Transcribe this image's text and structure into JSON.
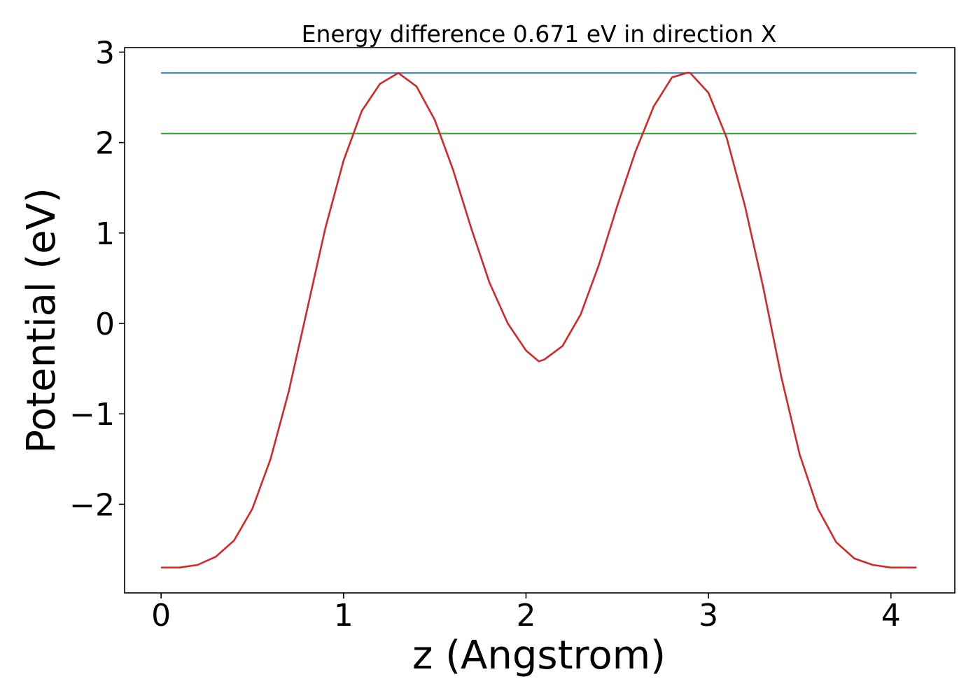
{
  "chart_data": {
    "type": "line",
    "title": "Energy difference 0.671 eV in direction X",
    "xlabel": "z (Angstrom)",
    "ylabel": "Potential (eV)",
    "xlim": [
      -0.2,
      4.35
    ],
    "ylim": [
      -2.98,
      3.05
    ],
    "x_ticks": [
      0,
      1,
      2,
      3,
      4
    ],
    "x_tick_labels": [
      "0",
      "1",
      "2",
      "3",
      "4"
    ],
    "y_ticks": [
      -2,
      -1,
      0,
      1,
      2,
      3
    ],
    "y_tick_labels": [
      "−2",
      "−1",
      "0",
      "1",
      "2",
      "3"
    ],
    "grid": false,
    "legend": "none",
    "series": [
      {
        "color": "#1f77b4",
        "x": [
          0,
          4.14
        ],
        "y": [
          2.77,
          2.77
        ]
      },
      {
        "color": "#2ca02c",
        "x": [
          0,
          4.14
        ],
        "y": [
          2.1,
          2.1
        ]
      },
      {
        "color": "#d62728",
        "x": [
          0.0,
          0.1,
          0.2,
          0.3,
          0.4,
          0.5,
          0.6,
          0.7,
          0.8,
          0.9,
          1.0,
          1.1,
          1.2,
          1.3,
          1.4,
          1.5,
          1.6,
          1.7,
          1.8,
          1.9,
          2.0,
          2.07,
          2.1,
          2.2,
          2.3,
          2.4,
          2.5,
          2.6,
          2.7,
          2.8,
          2.88,
          2.9,
          3.0,
          3.1,
          3.2,
          3.3,
          3.4,
          3.5,
          3.6,
          3.7,
          3.8,
          3.9,
          4.0,
          4.1,
          4.14
        ],
        "y": [
          -2.7,
          -2.7,
          -2.67,
          -2.58,
          -2.4,
          -2.05,
          -1.5,
          -0.75,
          0.15,
          1.05,
          1.8,
          2.35,
          2.65,
          2.77,
          2.62,
          2.25,
          1.7,
          1.05,
          0.45,
          0.0,
          -0.3,
          -0.42,
          -0.4,
          -0.25,
          0.1,
          0.65,
          1.3,
          1.9,
          2.4,
          2.72,
          2.77,
          2.77,
          2.55,
          2.05,
          1.3,
          0.4,
          -0.6,
          -1.45,
          -2.05,
          -2.42,
          -2.6,
          -2.67,
          -2.7,
          -2.7,
          -2.7
        ]
      }
    ]
  }
}
